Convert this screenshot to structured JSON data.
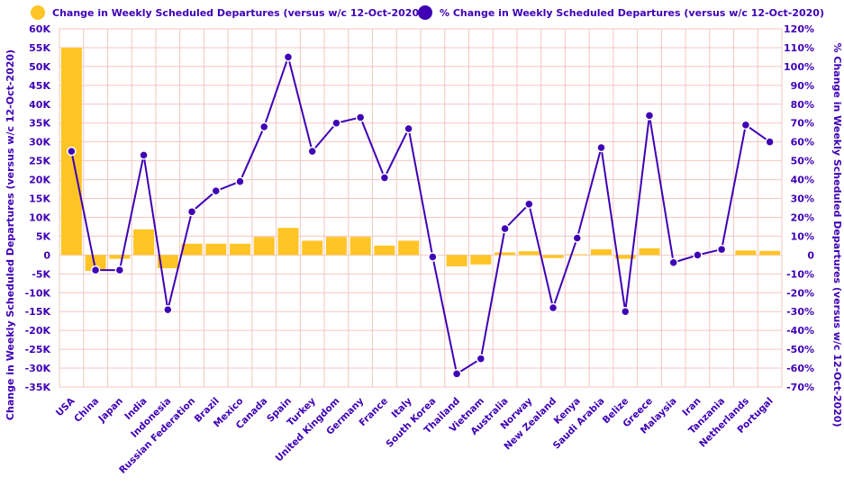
{
  "colors": {
    "bar": "#FFC425",
    "line": "#3F00B5",
    "text": "#3F00B5",
    "grid": "#F2C7C2"
  },
  "chart_data": {
    "type": "bar+line",
    "categories": [
      "USA",
      "China",
      "Japan",
      "India",
      "Indonesia",
      "Russian Federation",
      "Brazil",
      "Mexico",
      "Canada",
      "Spain",
      "Turkey",
      "United Kingdom",
      "Germany",
      "France",
      "Italy",
      "South Korea",
      "Thailand",
      "Vietnam",
      "Australia",
      "Norway",
      "New Zealand",
      "Kenya",
      "Saudi Arabia",
      "Belize",
      "Greece",
      "Malaysia",
      "Iran",
      "Tanzania",
      "Netherlands",
      "Portugal"
    ],
    "series": [
      {
        "name": "Change in Weekly Scheduled Departures (versus w/c 12-Oct-2020)",
        "type": "bar",
        "axis": "left",
        "values": [
          55000,
          -4200,
          -1000,
          6800,
          -3500,
          3000,
          3000,
          3000,
          4800,
          7200,
          3800,
          4800,
          4800,
          2500,
          3800,
          0,
          -3000,
          -2500,
          700,
          1000,
          -800,
          200,
          1500,
          -1000,
          1800,
          0,
          0,
          0,
          1200,
          1100
        ]
      },
      {
        "name": "% Change in Weekly Scheduled Departures (versus w/c 12-Oct-2020)",
        "type": "line",
        "axis": "right",
        "values": [
          55,
          -8,
          -8,
          53,
          -29,
          23,
          34,
          39,
          68,
          105,
          55,
          70,
          73,
          41,
          67,
          -1,
          -63,
          -55,
          14,
          27,
          -28,
          9,
          57,
          -30,
          74,
          -4,
          0,
          3,
          69,
          60
        ]
      }
    ],
    "y_left": {
      "label": "Change in Weekly Scheduled Departures (versus w/c 12-Oct-2020)",
      "min": -35000,
      "max": 60000,
      "ticks": [
        "60K",
        "55K",
        "50K",
        "45K",
        "40K",
        "35K",
        "30K",
        "25K",
        "20K",
        "15K",
        "10K",
        "5K",
        "0",
        "-5K",
        "-10K",
        "-15K",
        "-20K",
        "-25K",
        "-30K",
        "-35K"
      ]
    },
    "y_right": {
      "label": "% Change in Weekly Scheduled Departures (versus w/c 12-Oct-2020)",
      "min": -70,
      "max": 120,
      "ticks": [
        "120%",
        "110%",
        "100%",
        "90%",
        "80%",
        "70%",
        "60%",
        "50%",
        "40%",
        "30%",
        "20%",
        "10%",
        "0",
        "-10%",
        "-20%",
        "-30%",
        "-40%",
        "-50%",
        "-60%",
        "-70%"
      ]
    },
    "legend": "top",
    "grid": true
  }
}
